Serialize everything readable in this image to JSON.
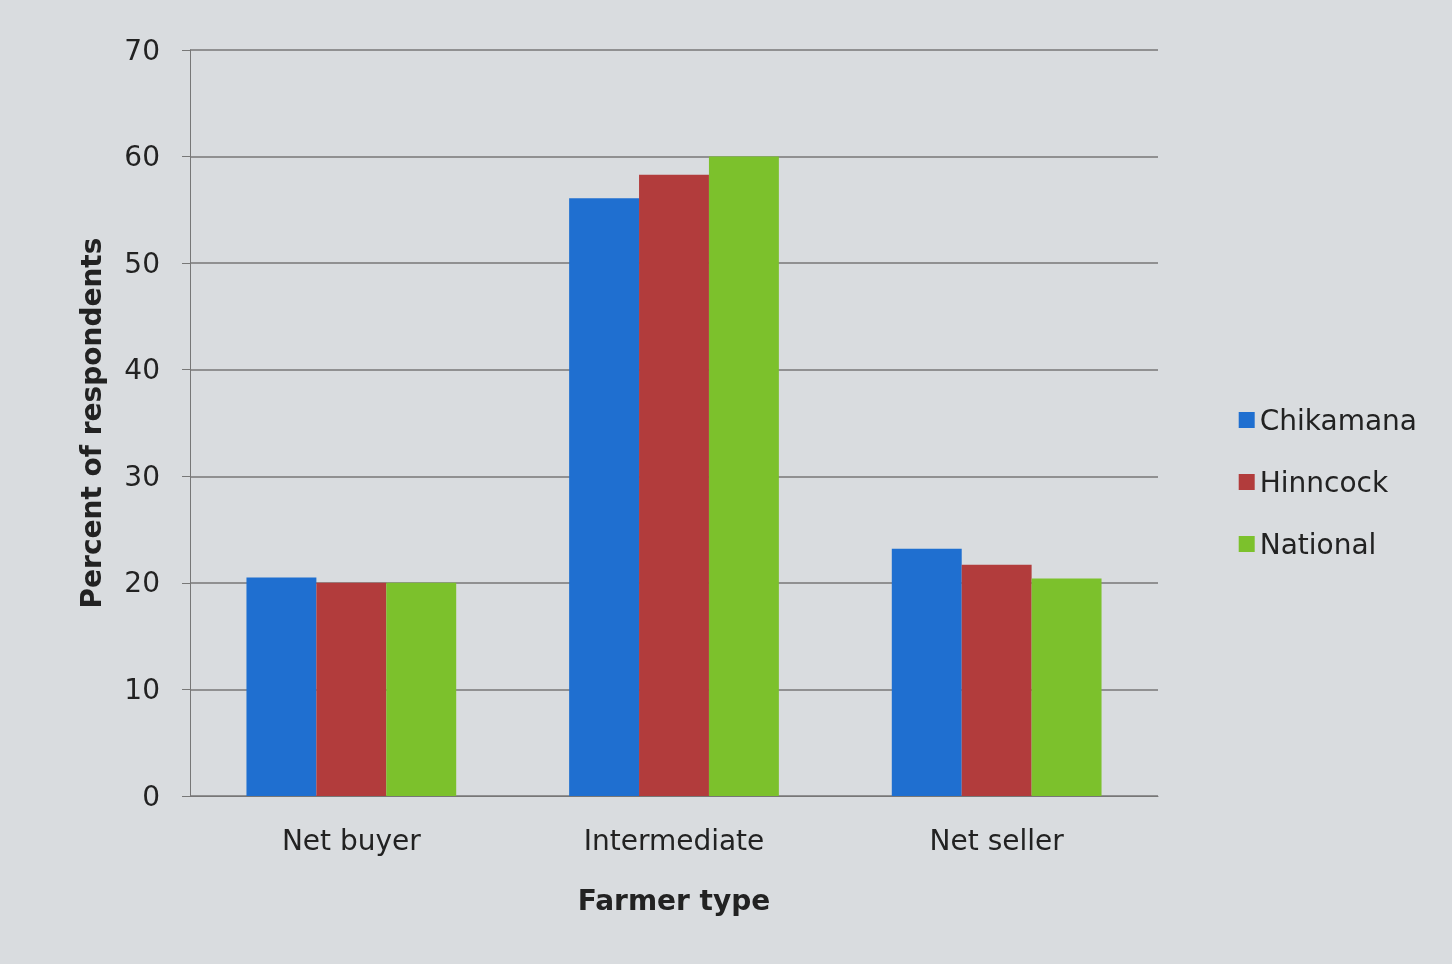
{
  "chart_data": {
    "type": "bar",
    "xlabel": "Farmer type",
    "ylabel": "Percent of respondents",
    "categories": [
      "Net buyer",
      "Intermediate",
      "Net seller"
    ],
    "series": [
      {
        "name": "Chikamana",
        "color": "#1f6fd0",
        "values": [
          20.5,
          56.1,
          23.2
        ]
      },
      {
        "name": "Hinncock",
        "color": "#b23c3c",
        "values": [
          20.0,
          58.3,
          21.7
        ]
      },
      {
        "name": "National",
        "color": "#7cc12c",
        "values": [
          20.0,
          60.0,
          20.4
        ]
      }
    ],
    "ylim": [
      0,
      70
    ],
    "yticks": [
      0,
      10,
      20,
      30,
      40,
      50,
      60,
      70
    ],
    "grid": "y",
    "legend": "right"
  }
}
